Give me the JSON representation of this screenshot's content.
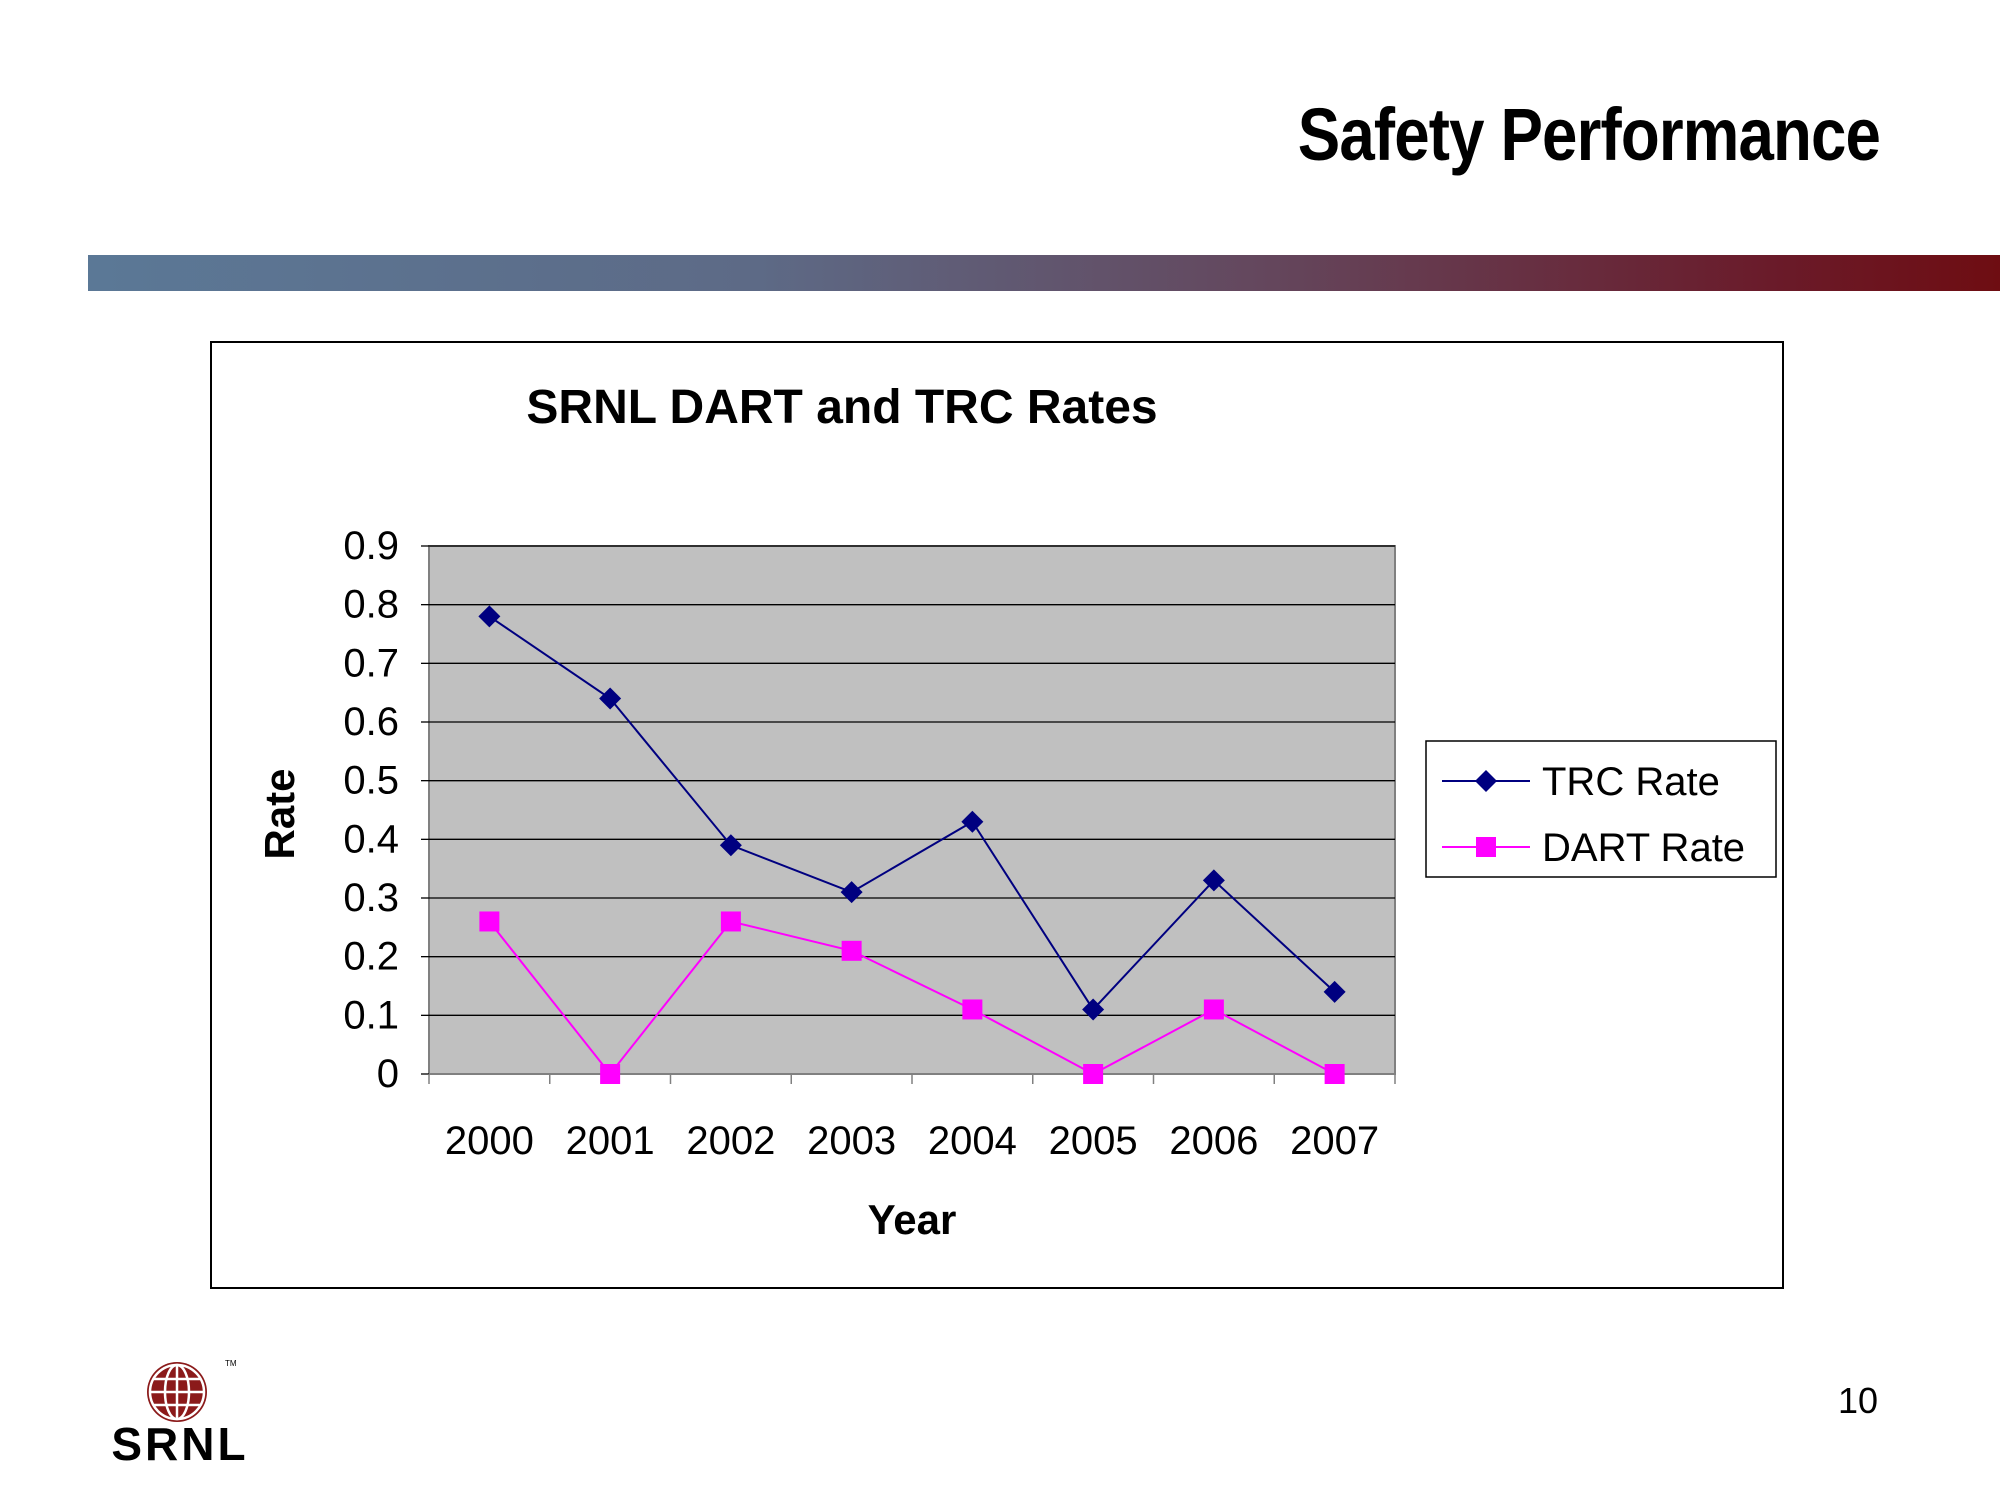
{
  "slide": {
    "title": "Safety Performance",
    "page_number": "10"
  },
  "logo": {
    "text": "SRNL",
    "tm": "TM",
    "color": "#8b1a1a"
  },
  "colors": {
    "plot_background": "#c0c0c0",
    "trc": "#000080",
    "dart": "#ff00ff"
  },
  "chart_data": {
    "type": "line",
    "title": "SRNL DART and TRC Rates",
    "xlabel": "Year",
    "ylabel": "Rate",
    "categories": [
      "2000",
      "2001",
      "2002",
      "2003",
      "2004",
      "2005",
      "2006",
      "2007"
    ],
    "ylim": [
      0,
      0.9
    ],
    "yticks": [
      "0",
      "0.1",
      "0.2",
      "0.3",
      "0.4",
      "0.5",
      "0.6",
      "0.7",
      "0.8",
      "0.9"
    ],
    "grid": true,
    "legend_position": "right",
    "series": [
      {
        "name": "TRC Rate",
        "marker": "diamond",
        "values": [
          0.78,
          0.64,
          0.39,
          0.31,
          0.43,
          0.11,
          0.33,
          0.14
        ]
      },
      {
        "name": "DART Rate",
        "marker": "square",
        "values": [
          0.26,
          0.0,
          0.26,
          0.21,
          0.11,
          0.0,
          0.11,
          0.0
        ]
      }
    ]
  }
}
